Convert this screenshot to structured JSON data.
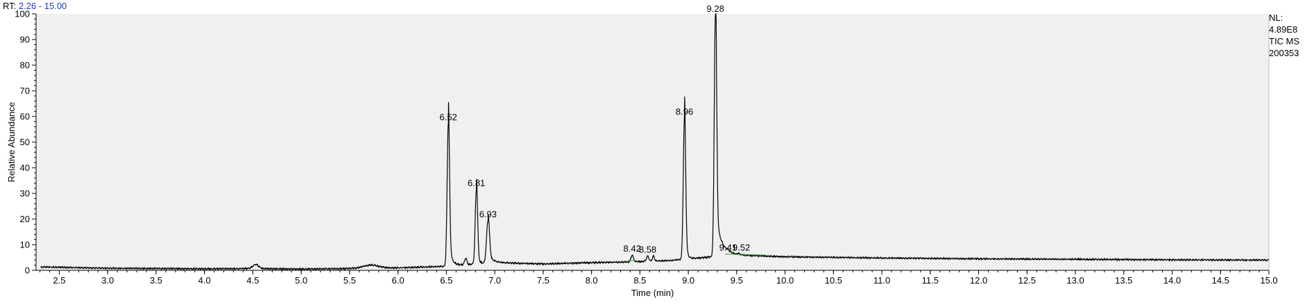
{
  "header": {
    "rt_prefix": "RT:",
    "rt_range": "2.26 - 15.00"
  },
  "info": {
    "nl_label": "NL:",
    "nl_value": "4.89E8",
    "scan_type": "TIC  MS",
    "sample": "200353"
  },
  "colors": {
    "trace": "#000000",
    "plot_background": "#f0f0f0",
    "rt_range_text": "#1f3fa8",
    "integration_marks": "#2e9e2e"
  },
  "chart_data": {
    "type": "line",
    "title": "",
    "xlabel": "Time (min)",
    "ylabel": "Relative Abundance",
    "xlim": [
      2.26,
      15.0
    ],
    "ylim": [
      0,
      100
    ],
    "x_ticks": [
      2.5,
      3.0,
      3.5,
      4.0,
      4.5,
      5.0,
      5.5,
      6.0,
      6.5,
      7.0,
      7.5,
      8.0,
      8.5,
      9.0,
      9.5,
      10.0,
      10.5,
      11.0,
      11.5,
      12.0,
      12.5,
      13.0,
      13.5,
      14.0,
      14.5,
      15.0
    ],
    "x_tick_labels": [
      "2.5",
      "3.0",
      "3.5",
      "4.0",
      "4.5",
      "5.0",
      "5.5",
      "6.0",
      "6.5",
      "7.0",
      "7.5",
      "8.0",
      "8.5",
      "9.0",
      "9.5",
      "10.0",
      "10.5",
      "11.0",
      "11.5",
      "12.0",
      "12.5",
      "13.0",
      "13.5",
      "14.0",
      "14.5",
      "15.0"
    ],
    "y_ticks": [
      0,
      10,
      20,
      30,
      40,
      50,
      60,
      70,
      80,
      90,
      100
    ],
    "y_tick_labels": [
      "0",
      "10",
      "20",
      "30",
      "40",
      "50",
      "60",
      "70",
      "80",
      "90",
      "100"
    ],
    "grid": false,
    "baseline": [
      [
        2.26,
        1.0
      ],
      [
        2.35,
        1.3
      ],
      [
        3.0,
        0.8
      ],
      [
        4.0,
        0.6
      ],
      [
        4.45,
        0.7
      ],
      [
        5.0,
        0.5
      ],
      [
        5.5,
        0.7
      ],
      [
        6.0,
        1.0
      ],
      [
        6.45,
        1.5
      ],
      [
        6.7,
        2.2
      ],
      [
        7.0,
        3.0
      ],
      [
        7.5,
        2.5
      ],
      [
        8.0,
        3.0
      ],
      [
        8.3,
        3.2
      ],
      [
        8.8,
        3.8
      ],
      [
        9.45,
        6.0
      ],
      [
        10.0,
        5.3
      ],
      [
        11.0,
        4.8
      ],
      [
        12.0,
        4.5
      ],
      [
        13.0,
        4.3
      ],
      [
        14.0,
        4.1
      ],
      [
        15.0,
        4.0
      ]
    ],
    "peaks": [
      {
        "rt": 4.53,
        "height": 1.6,
        "width": 0.03,
        "tail": 0.0,
        "label": ""
      },
      {
        "rt": 5.72,
        "height": 1.2,
        "width": 0.08,
        "tail": 0.0,
        "label": ""
      },
      {
        "rt": 6.52,
        "height": 55.5,
        "width": 0.012,
        "tail": 0.03,
        "label": "6.52"
      },
      {
        "rt": 6.7,
        "height": 2.5,
        "width": 0.012,
        "tail": 0.0,
        "label": ""
      },
      {
        "rt": 6.81,
        "height": 29.0,
        "width": 0.012,
        "tail": 0.02,
        "label": "6.81"
      },
      {
        "rt": 6.93,
        "height": 16.5,
        "width": 0.015,
        "tail": 0.05,
        "label": "6.93"
      },
      {
        "rt": 8.42,
        "height": 2.6,
        "width": 0.012,
        "tail": 0.0,
        "label": "8.42"
      },
      {
        "rt": 8.58,
        "height": 2.0,
        "width": 0.012,
        "tail": 0.0,
        "label": "8.58"
      },
      {
        "rt": 8.64,
        "height": 2.0,
        "width": 0.01,
        "tail": 0.0,
        "label": ""
      },
      {
        "rt": 8.96,
        "height": 55.0,
        "width": 0.012,
        "tail": 0.02,
        "label": "8.96"
      },
      {
        "rt": 9.28,
        "height": 94.0,
        "width": 0.012,
        "tail": 0.06,
        "label": "9.28"
      },
      {
        "rt": 9.41,
        "height": 0.5,
        "width": 0.01,
        "tail": 0.0,
        "label": "9.41"
      },
      {
        "rt": 9.52,
        "height": 0.4,
        "width": 0.01,
        "tail": 0.0,
        "label": "9.52"
      }
    ]
  }
}
